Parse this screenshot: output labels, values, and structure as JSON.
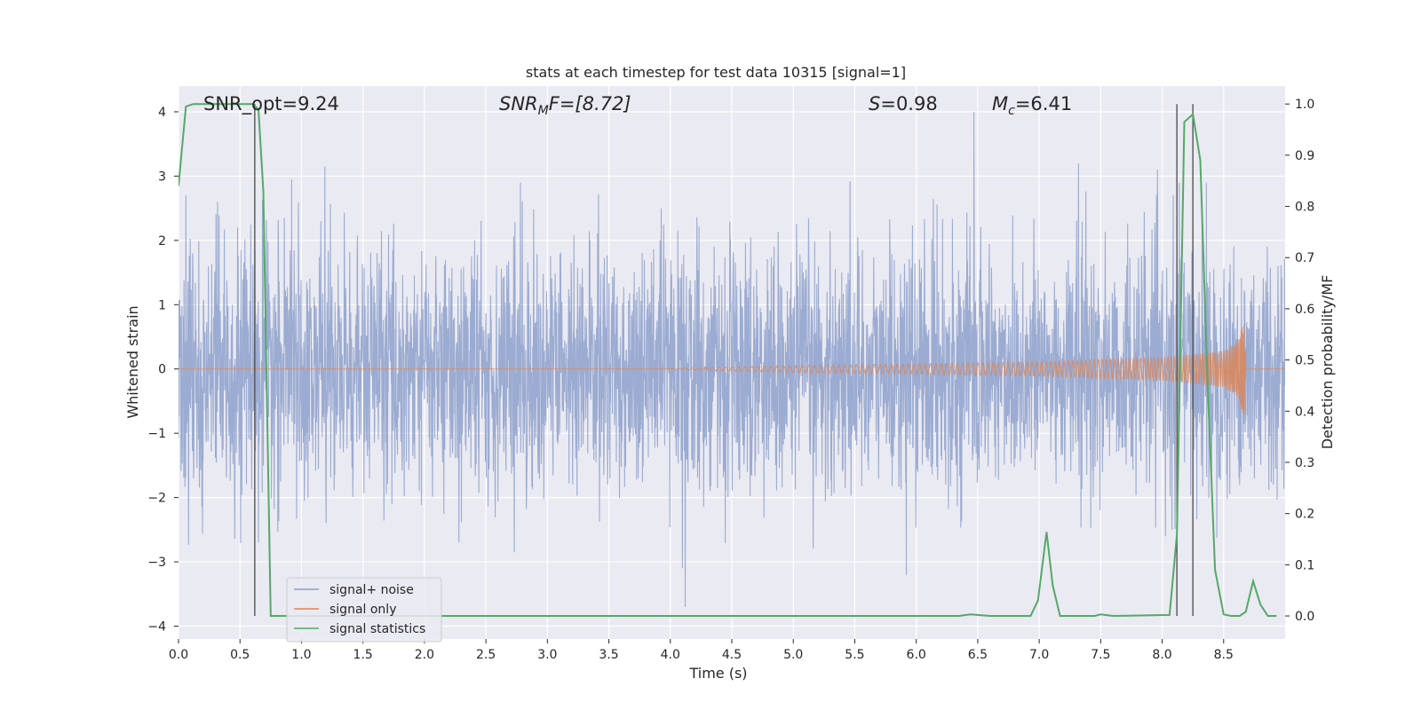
{
  "chart_data": {
    "type": "line",
    "title": "stats at each timestep for test data 10315 [signal=1]",
    "xlabel": "Time (s)",
    "ylabel_left": "Whitened strain",
    "ylabel_right": "Detection probability/MF",
    "xlim": [
      0,
      9
    ],
    "ylim_left": [
      -4.2,
      4.4
    ],
    "ylim_right": [
      -0.045,
      1.035
    ],
    "x_ticks": [
      {
        "v": 0.0,
        "label": "0.0"
      },
      {
        "v": 0.5,
        "label": "0.5"
      },
      {
        "v": 1.0,
        "label": "1.0"
      },
      {
        "v": 1.5,
        "label": "1.5"
      },
      {
        "v": 2.0,
        "label": "2.0"
      },
      {
        "v": 2.5,
        "label": "2.5"
      },
      {
        "v": 3.0,
        "label": "3.0"
      },
      {
        "v": 3.5,
        "label": "3.5"
      },
      {
        "v": 4.0,
        "label": "4.0"
      },
      {
        "v": 4.5,
        "label": "4.5"
      },
      {
        "v": 5.0,
        "label": "5.0"
      },
      {
        "v": 5.5,
        "label": "5.5"
      },
      {
        "v": 6.0,
        "label": "6.0"
      },
      {
        "v": 6.5,
        "label": "6.5"
      },
      {
        "v": 7.0,
        "label": "7.0"
      },
      {
        "v": 7.5,
        "label": "7.5"
      },
      {
        "v": 8.0,
        "label": "8.0"
      },
      {
        "v": 8.5,
        "label": "8.5"
      }
    ],
    "y_ticks_left": [
      {
        "v": 4,
        "label": "4"
      },
      {
        "v": 3,
        "label": "3"
      },
      {
        "v": 2,
        "label": "2"
      },
      {
        "v": 1,
        "label": "1"
      },
      {
        "v": 0,
        "label": "0"
      },
      {
        "v": -1,
        "label": "−1"
      },
      {
        "v": -2,
        "label": "−2"
      },
      {
        "v": -3,
        "label": "−3"
      },
      {
        "v": -4,
        "label": "−4"
      }
    ],
    "y_ticks_right": [
      {
        "v": 1.0,
        "label": "1.0"
      },
      {
        "v": 0.9,
        "label": "0.9"
      },
      {
        "v": 0.8,
        "label": "0.8"
      },
      {
        "v": 0.7,
        "label": "0.7"
      },
      {
        "v": 0.6,
        "label": "0.6"
      },
      {
        "v": 0.5,
        "label": "0.5"
      },
      {
        "v": 0.4,
        "label": "0.4"
      },
      {
        "v": 0.3,
        "label": "0.3"
      },
      {
        "v": 0.2,
        "label": "0.2"
      },
      {
        "v": 0.1,
        "label": "0.1"
      },
      {
        "v": 0.0,
        "label": "0.0"
      }
    ],
    "grid": true,
    "legend": {
      "placement": "lower-left",
      "entries": [
        {
          "label": "signal+ noise",
          "color": "#8da0cb"
        },
        {
          "label": "signal only",
          "color": "#dd8452"
        },
        {
          "label": "signal statistics",
          "color": "#55a868"
        }
      ]
    },
    "annotations": {
      "snr_opt": "SNR_opt=9.24",
      "snr_mf_base": "SNR",
      "snr_mf_sub": "M",
      "snr_mf_rest": "F=[8.72]",
      "s_sym": "S",
      "s_val": "=0.98",
      "mc_sym": "M",
      "mc_sub": "c",
      "mc_val": "=6.41"
    },
    "vertical_markers_x": [
      0.62,
      8.12,
      8.25
    ],
    "series": [
      {
        "name": "signal+ noise",
        "color": "#8da0cb",
        "axis": "left",
        "description": "whitened strain, roughly Gaussian noise with sigma approx 0.95, range approx -4 to 4",
        "peaks": [
          {
            "x": 0.06,
            "y": 2.7
          },
          {
            "x": 0.48,
            "y": 2.2
          },
          {
            "x": 0.65,
            "y": -2.7
          },
          {
            "x": 1.19,
            "y": 3.15
          },
          {
            "x": 0.92,
            "y": 2.95
          },
          {
            "x": 2.28,
            "y": -2.7
          },
          {
            "x": 2.78,
            "y": 2.9
          },
          {
            "x": 2.73,
            "y": -2.85
          },
          {
            "x": 4.12,
            "y": -3.7
          },
          {
            "x": 5.92,
            "y": -3.2
          },
          {
            "x": 6.47,
            "y": 4.0
          },
          {
            "x": 7.32,
            "y": 3.2
          },
          {
            "x": 8.08,
            "y": -2.5
          },
          {
            "x": 8.14,
            "y": 2.9
          },
          {
            "x": 8.36,
            "y": 2.9
          }
        ]
      },
      {
        "name": "signal only",
        "color": "#dd8452",
        "axis": "left",
        "description": "chirp waveform, amplitude growing toward merger",
        "t_start": 4.0,
        "t_merger": 8.68,
        "amplitude_profile": [
          {
            "x": 4.0,
            "amp": 0.005
          },
          {
            "x": 5.0,
            "amp": 0.055
          },
          {
            "x": 6.0,
            "amp": 0.08
          },
          {
            "x": 7.0,
            "amp": 0.11
          },
          {
            "x": 8.0,
            "amp": 0.18
          },
          {
            "x": 8.5,
            "amp": 0.28
          },
          {
            "x": 8.62,
            "amp": 0.45
          },
          {
            "x": 8.68,
            "amp": 0.85
          }
        ]
      },
      {
        "name": "signal statistics",
        "color": "#55a868",
        "axis": "right",
        "points": [
          {
            "x": 0.0,
            "y": 0.84
          },
          {
            "x": 0.06,
            "y": 0.995
          },
          {
            "x": 0.12,
            "y": 1.0
          },
          {
            "x": 0.6,
            "y": 1.0
          },
          {
            "x": 0.65,
            "y": 0.99
          },
          {
            "x": 0.69,
            "y": 0.83
          },
          {
            "x": 0.75,
            "y": 0.0
          },
          {
            "x": 6.35,
            "y": 0.0
          },
          {
            "x": 6.44,
            "y": 0.003
          },
          {
            "x": 6.6,
            "y": 0.0
          },
          {
            "x": 6.93,
            "y": 0.0
          },
          {
            "x": 6.99,
            "y": 0.03
          },
          {
            "x": 7.06,
            "y": 0.164
          },
          {
            "x": 7.11,
            "y": 0.06
          },
          {
            "x": 7.17,
            "y": 0.0
          },
          {
            "x": 7.45,
            "y": 0.0
          },
          {
            "x": 7.5,
            "y": 0.003
          },
          {
            "x": 7.6,
            "y": 0.0
          },
          {
            "x": 8.06,
            "y": 0.002
          },
          {
            "x": 8.12,
            "y": 0.16
          },
          {
            "x": 8.18,
            "y": 0.965
          },
          {
            "x": 8.25,
            "y": 0.98
          },
          {
            "x": 8.31,
            "y": 0.89
          },
          {
            "x": 8.37,
            "y": 0.45
          },
          {
            "x": 8.43,
            "y": 0.09
          },
          {
            "x": 8.5,
            "y": 0.003
          },
          {
            "x": 8.56,
            "y": 0.0
          },
          {
            "x": 8.63,
            "y": 0.0
          },
          {
            "x": 8.68,
            "y": 0.008
          },
          {
            "x": 8.74,
            "y": 0.068
          },
          {
            "x": 8.8,
            "y": 0.022
          },
          {
            "x": 8.86,
            "y": 0.0
          },
          {
            "x": 8.93,
            "y": 0.0
          }
        ]
      }
    ]
  }
}
